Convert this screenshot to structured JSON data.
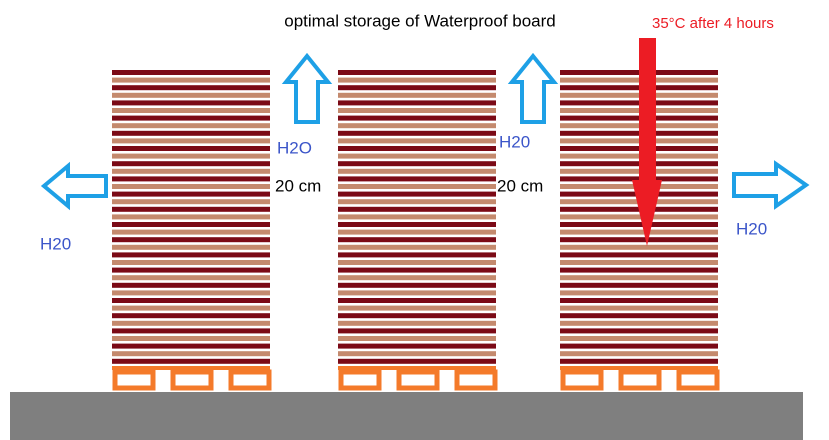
{
  "title": "optimal storage of Waterproof board",
  "annotation": "35°C after 4 hours",
  "vapor_labels": [
    "H2O",
    "H20",
    "H20",
    "H20"
  ],
  "spacing_labels": [
    "20 cm",
    "20 cm"
  ]
}
